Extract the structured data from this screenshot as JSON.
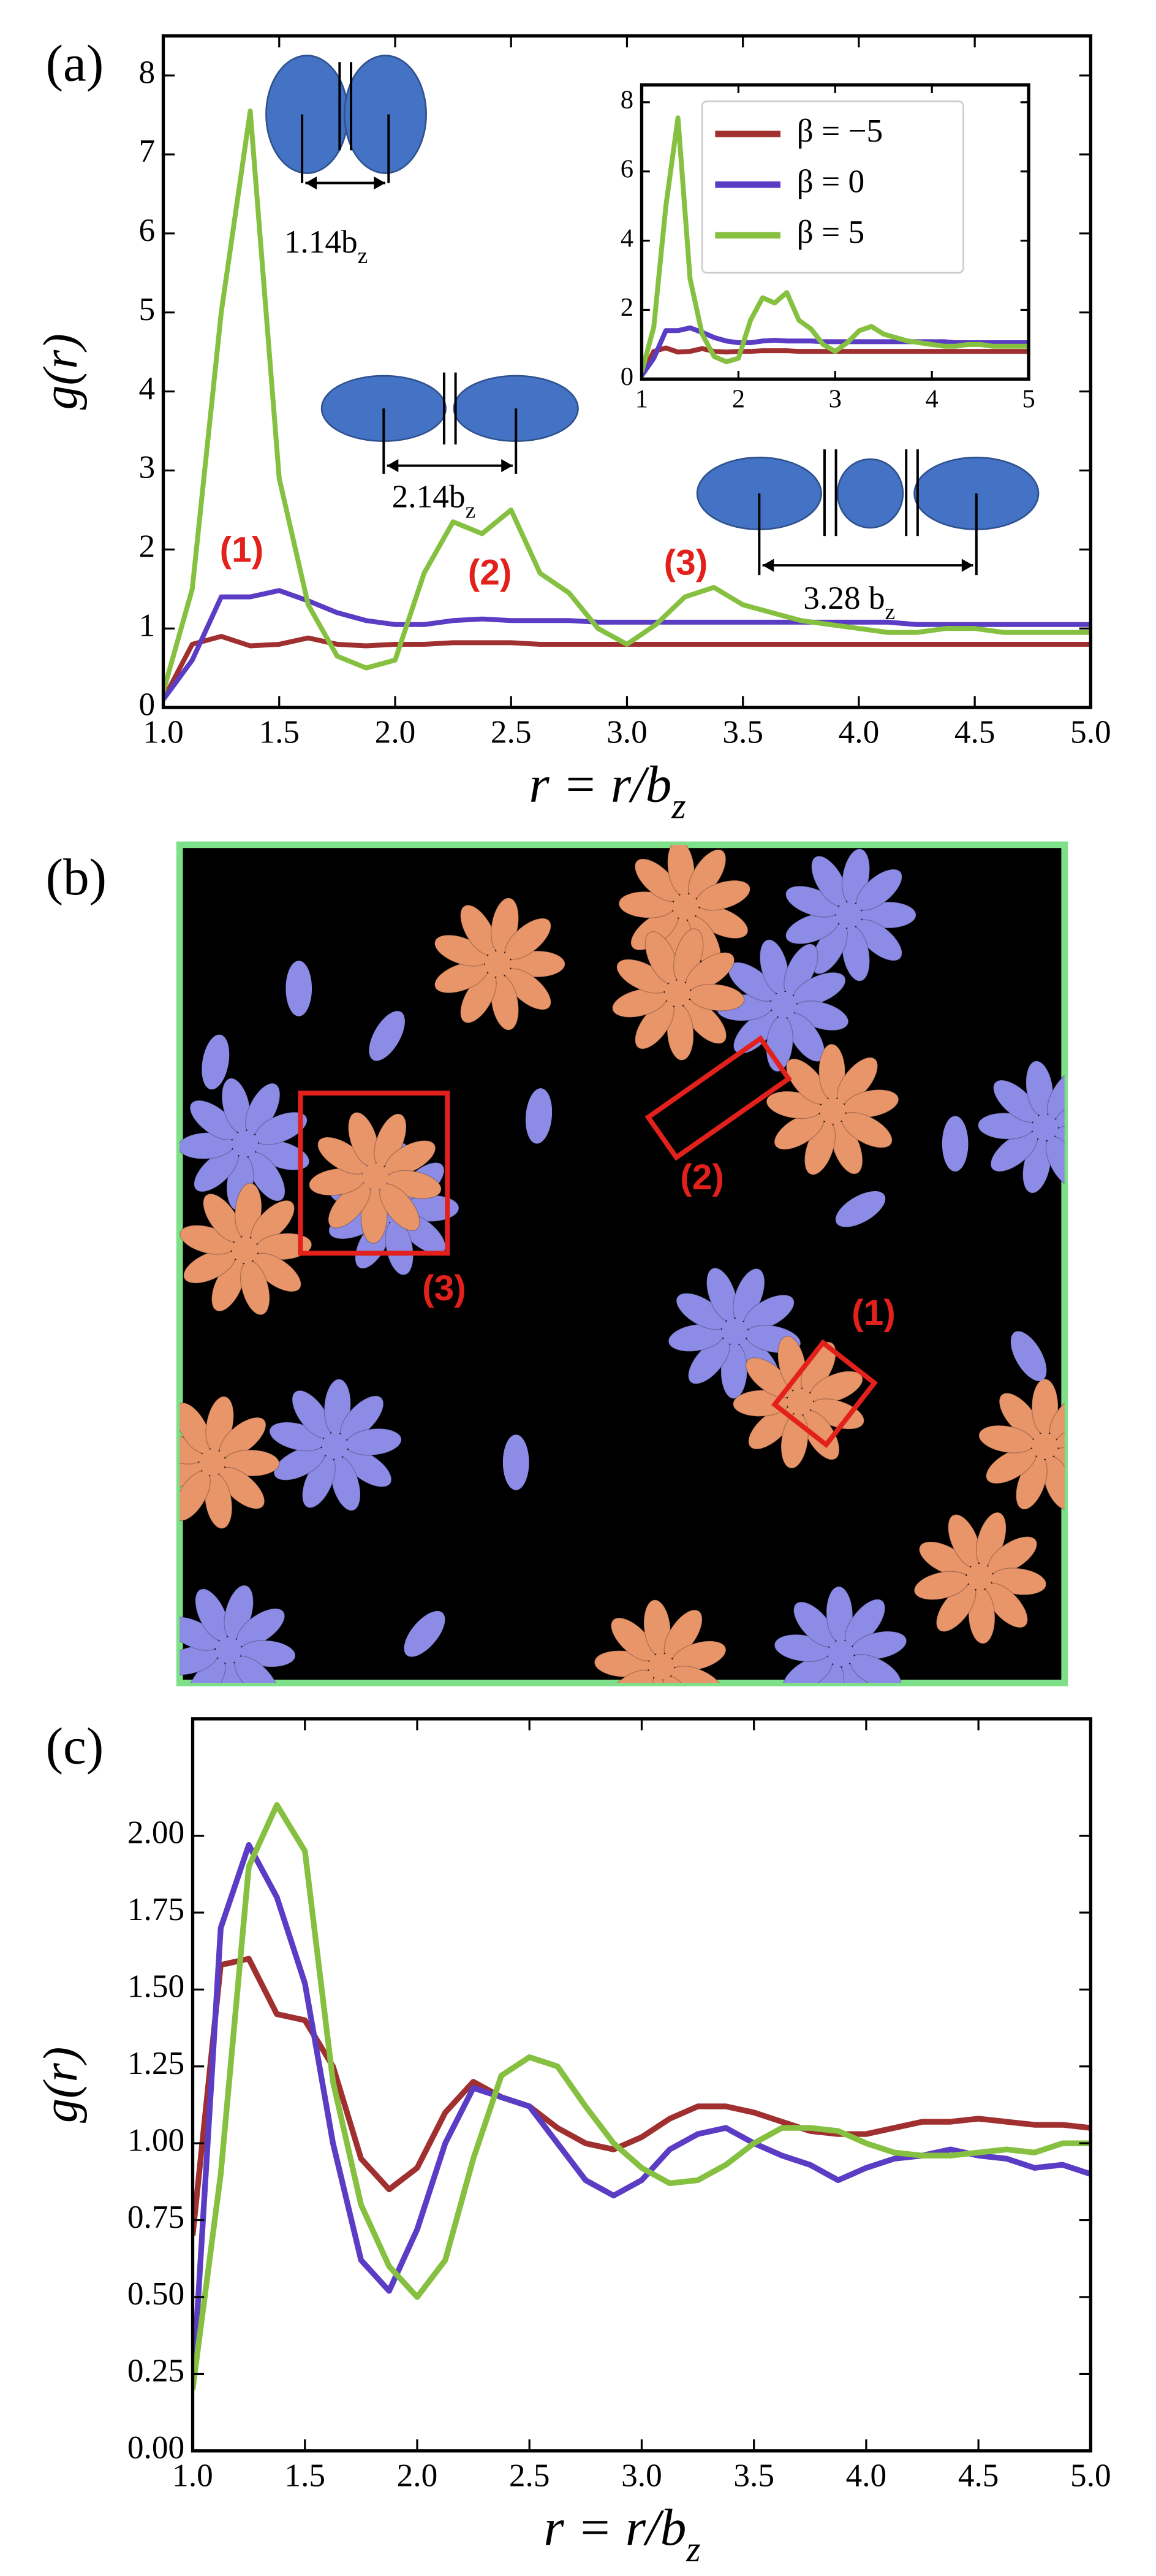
{
  "chart_data": [
    {
      "type": "line",
      "panel_label": "(a)",
      "x": [
        1.0,
        1.125,
        1.25,
        1.375,
        1.5,
        1.625,
        1.75,
        1.875,
        2.0,
        2.125,
        2.25,
        2.375,
        2.5,
        2.625,
        2.75,
        2.875,
        3.0,
        3.125,
        3.25,
        3.375,
        3.5,
        3.625,
        3.75,
        3.875,
        4.0,
        4.125,
        4.25,
        4.375,
        4.5,
        4.625,
        4.75,
        4.875,
        5.0
      ],
      "series": [
        {
          "color": "#a0302f",
          "values": [
            0.1,
            0.8,
            0.9,
            0.78,
            0.8,
            0.88,
            0.8,
            0.78,
            0.8,
            0.8,
            0.82,
            0.82,
            0.82,
            0.8,
            0.8,
            0.8,
            0.8,
            0.8,
            0.8,
            0.8,
            0.8,
            0.8,
            0.8,
            0.8,
            0.8,
            0.8,
            0.8,
            0.8,
            0.8,
            0.8,
            0.8,
            0.8,
            0.8
          ]
        },
        {
          "color": "#5b3cc4",
          "values": [
            0.1,
            0.6,
            1.4,
            1.4,
            1.48,
            1.35,
            1.2,
            1.1,
            1.05,
            1.05,
            1.1,
            1.12,
            1.1,
            1.1,
            1.1,
            1.08,
            1.08,
            1.08,
            1.08,
            1.08,
            1.08,
            1.08,
            1.08,
            1.08,
            1.08,
            1.08,
            1.05,
            1.05,
            1.05,
            1.05,
            1.05,
            1.05,
            1.05
          ]
        },
        {
          "color": "#86c040",
          "values": [
            0.2,
            1.5,
            5.0,
            7.55,
            2.9,
            1.3,
            0.65,
            0.5,
            0.6,
            1.7,
            2.35,
            2.2,
            2.5,
            1.7,
            1.45,
            1.0,
            0.8,
            1.05,
            1.4,
            1.52,
            1.3,
            1.2,
            1.1,
            1.05,
            1.0,
            0.95,
            0.95,
            1.0,
            1.0,
            0.95,
            0.95,
            0.95,
            0.95
          ]
        }
      ],
      "xlim": [
        1,
        5
      ],
      "ylim": [
        0,
        8.5
      ],
      "xticks": [
        {
          "value": 1,
          "label": "1.0"
        },
        {
          "value": 1.5,
          "label": "1.5"
        },
        {
          "value": 2,
          "label": "2.0"
        },
        {
          "value": 2.5,
          "label": "2.5"
        },
        {
          "value": 3,
          "label": "3.0"
        },
        {
          "value": 3.5,
          "label": "3.5"
        },
        {
          "value": 4,
          "label": "4.0"
        },
        {
          "value": 4.5,
          "label": "4.5"
        },
        {
          "value": 5,
          "label": "5.0"
        }
      ],
      "yticks": [
        0,
        1,
        2,
        3,
        4,
        5,
        6,
        7,
        8
      ],
      "xlabel": {
        "text": "r = r/b",
        "sub": "z"
      },
      "ylabel": "g(r)",
      "peak_labels": [
        "(1)",
        "(2)",
        "(3)"
      ],
      "spacings": [
        {
          "text": "1.14b",
          "sub": "z"
        },
        {
          "text": "2.14b",
          "sub": "z"
        },
        {
          "text": "3.28 b",
          "sub": "z"
        }
      ]
    },
    {
      "type": "line",
      "x": [
        1.0,
        1.125,
        1.25,
        1.375,
        1.5,
        1.625,
        1.75,
        1.875,
        2.0,
        2.125,
        2.25,
        2.375,
        2.5,
        2.625,
        2.75,
        2.875,
        3.0,
        3.125,
        3.25,
        3.375,
        3.5,
        3.625,
        3.75,
        3.875,
        4.0,
        4.125,
        4.25,
        4.375,
        4.5,
        4.625,
        4.75,
        4.875,
        5.0
      ],
      "series": [
        {
          "name": "β = −5",
          "color": "#a0302f",
          "values": [
            0.1,
            0.8,
            0.9,
            0.78,
            0.8,
            0.88,
            0.8,
            0.78,
            0.8,
            0.8,
            0.82,
            0.82,
            0.82,
            0.8,
            0.8,
            0.8,
            0.8,
            0.8,
            0.8,
            0.8,
            0.8,
            0.8,
            0.8,
            0.8,
            0.8,
            0.8,
            0.8,
            0.8,
            0.8,
            0.8,
            0.8,
            0.8,
            0.8
          ]
        },
        {
          "name": "β = 0",
          "color": "#5b3cc4",
          "values": [
            0.1,
            0.6,
            1.4,
            1.4,
            1.48,
            1.35,
            1.2,
            1.1,
            1.05,
            1.05,
            1.1,
            1.12,
            1.1,
            1.1,
            1.1,
            1.08,
            1.08,
            1.08,
            1.08,
            1.08,
            1.08,
            1.08,
            1.08,
            1.08,
            1.08,
            1.08,
            1.05,
            1.05,
            1.05,
            1.05,
            1.05,
            1.05,
            1.05
          ]
        },
        {
          "name": "β = 5",
          "color": "#86c040",
          "values": [
            0.2,
            1.5,
            5.0,
            7.55,
            2.9,
            1.3,
            0.65,
            0.5,
            0.6,
            1.7,
            2.35,
            2.2,
            2.5,
            1.7,
            1.45,
            1.0,
            0.8,
            1.05,
            1.4,
            1.52,
            1.3,
            1.2,
            1.1,
            1.05,
            1.0,
            0.95,
            0.95,
            1.0,
            1.0,
            0.95,
            0.95,
            0.95,
            0.95
          ]
        }
      ],
      "xlim": [
        1,
        5
      ],
      "ylim": [
        0,
        8.5
      ],
      "xticks": [
        1,
        2,
        3,
        4,
        5
      ],
      "yticks": [
        0,
        2,
        4,
        6,
        8
      ],
      "legend": "upper left"
    },
    {
      "type": "line",
      "panel_label": "(c)",
      "x": [
        1.0,
        1.125,
        1.25,
        1.375,
        1.5,
        1.625,
        1.75,
        1.875,
        2.0,
        2.125,
        2.25,
        2.375,
        2.5,
        2.625,
        2.75,
        2.875,
        3.0,
        3.125,
        3.25,
        3.375,
        3.5,
        3.625,
        3.75,
        3.875,
        4.0,
        4.125,
        4.25,
        4.375,
        4.5,
        4.625,
        4.75,
        4.875,
        5.0
      ],
      "series": [
        {
          "color": "#a0302f",
          "values": [
            0.7,
            1.58,
            1.6,
            1.42,
            1.4,
            1.25,
            0.95,
            0.85,
            0.92,
            1.1,
            1.2,
            1.15,
            1.12,
            1.05,
            1.0,
            0.98,
            1.02,
            1.08,
            1.12,
            1.12,
            1.1,
            1.07,
            1.04,
            1.03,
            1.03,
            1.05,
            1.07,
            1.07,
            1.08,
            1.07,
            1.06,
            1.06,
            1.05
          ]
        },
        {
          "color": "#5b3cc4",
          "values": [
            0.2,
            1.7,
            1.97,
            1.8,
            1.52,
            1.0,
            0.62,
            0.52,
            0.72,
            1.0,
            1.18,
            1.15,
            1.12,
            1.0,
            0.88,
            0.83,
            0.88,
            0.98,
            1.03,
            1.05,
            1.0,
            0.96,
            0.93,
            0.88,
            0.92,
            0.95,
            0.96,
            0.98,
            0.96,
            0.95,
            0.92,
            0.93,
            0.9
          ]
        },
        {
          "color": "#86c040",
          "values": [
            0.2,
            0.9,
            1.9,
            2.1,
            1.95,
            1.2,
            0.8,
            0.6,
            0.5,
            0.62,
            0.95,
            1.22,
            1.28,
            1.25,
            1.12,
            1.0,
            0.92,
            0.87,
            0.88,
            0.93,
            1.0,
            1.05,
            1.05,
            1.04,
            1.0,
            0.97,
            0.96,
            0.96,
            0.97,
            0.98,
            0.97,
            1.0,
            1.0
          ]
        }
      ],
      "xlim": [
        1,
        5
      ],
      "ylim": [
        0,
        2.38
      ],
      "xticks": [
        {
          "value": 1,
          "label": "1.0"
        },
        {
          "value": 1.5,
          "label": "1.5"
        },
        {
          "value": 2,
          "label": "2.0"
        },
        {
          "value": 2.5,
          "label": "2.5"
        },
        {
          "value": 3,
          "label": "3.0"
        },
        {
          "value": 3.5,
          "label": "3.5"
        },
        {
          "value": 4,
          "label": "4.0"
        },
        {
          "value": 4.5,
          "label": "4.5"
        },
        {
          "value": 5,
          "label": "5.0"
        }
      ],
      "yticks": [
        {
          "value": 0,
          "label": "0.00"
        },
        {
          "value": 0.25,
          "label": "0.25"
        },
        {
          "value": 0.5,
          "label": "0.50"
        },
        {
          "value": 0.75,
          "label": "0.75"
        },
        {
          "value": 1,
          "label": "1.00"
        },
        {
          "value": 1.25,
          "label": "1.25"
        },
        {
          "value": 1.5,
          "label": "1.50"
        },
        {
          "value": 1.75,
          "label": "1.75"
        },
        {
          "value": 2,
          "label": "2.00"
        }
      ],
      "xlabel": {
        "text": "r = r/b",
        "sub": "z"
      },
      "ylabel": "g(r)"
    }
  ],
  "image_panel": {
    "panel_label": "(b)",
    "region_labels": [
      "(1)",
      "(2)",
      "(3)"
    ]
  }
}
